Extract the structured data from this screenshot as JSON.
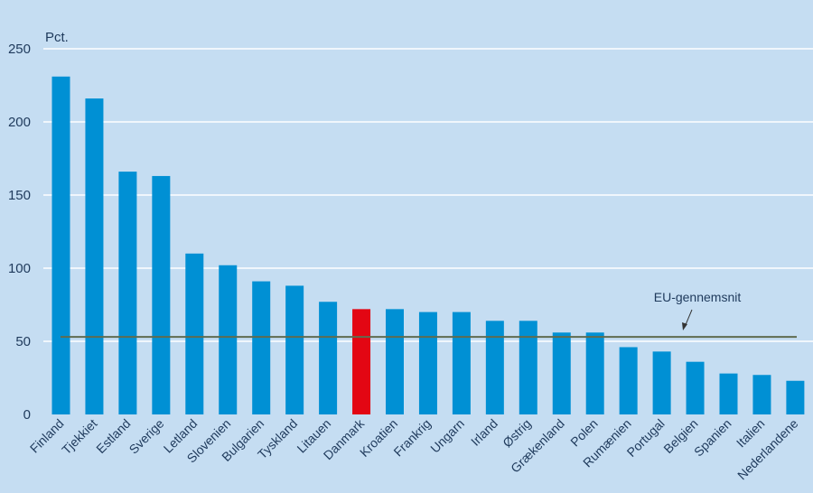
{
  "chart_data": {
    "type": "bar",
    "unit_label": "Pct.",
    "categories": [
      "Finland",
      "Tjekkiet",
      "Estland",
      "Sverige",
      "Letland",
      "Slovenien",
      "Bulgarien",
      "Tyskland",
      "Litauen",
      "Danmark",
      "Kroatien",
      "Frankrig",
      "Ungarn",
      "Irland",
      "Østrig",
      "Grækenland",
      "Polen",
      "Rumænien",
      "Portugal",
      "Belgien",
      "Spanien",
      "Italien",
      "Nederlandene"
    ],
    "values": [
      231,
      216,
      166,
      163,
      110,
      102,
      91,
      88,
      77,
      72,
      72,
      70,
      70,
      64,
      64,
      56,
      56,
      46,
      43,
      36,
      28,
      27,
      23
    ],
    "highlight_category": "Danmark",
    "colors": {
      "bar": "#0090d4",
      "highlight": "#e30613",
      "reference_line": "#5f6b4f",
      "background": "#c5ddf2",
      "grid": "#ffffff"
    },
    "reference_line": {
      "label": "EU-gennemsnit",
      "value": 53
    },
    "ylim": [
      0,
      250
    ],
    "yticks": [
      0,
      50,
      100,
      150,
      200,
      250
    ],
    "grid": true
  }
}
